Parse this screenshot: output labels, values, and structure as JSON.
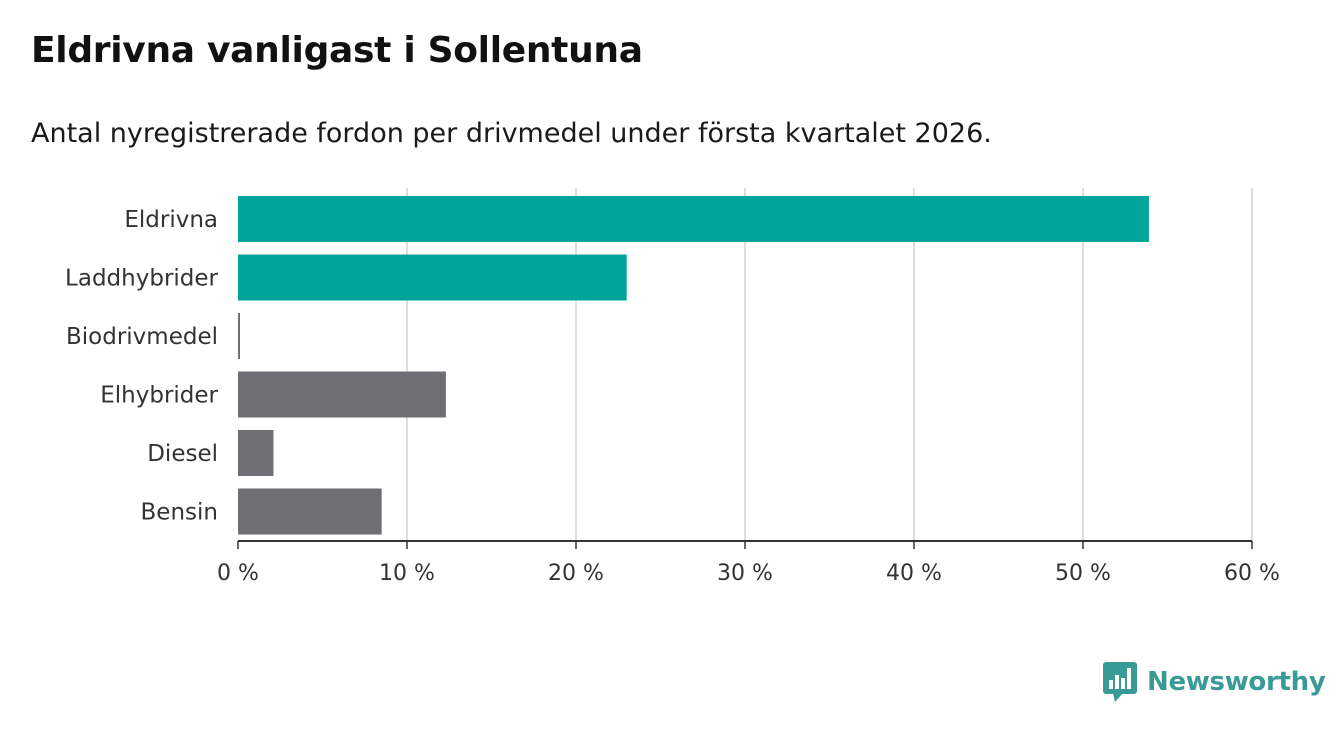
{
  "chart_data": {
    "type": "bar",
    "orientation": "horizontal",
    "title": "Eldrivna vanligast i Sollentuna",
    "subtitle": "Antal nyregistrerade fordon per drivmedel under första kvartalet 2026.",
    "categories": [
      "Eldrivna",
      "Laddhybrider",
      "Biodrivmedel",
      "Elhybrider",
      "Diesel",
      "Bensin"
    ],
    "values": [
      53.9,
      23.0,
      0.1,
      12.3,
      2.1,
      8.5
    ],
    "bar_colors": [
      "#00a499",
      "#00a499",
      "#6e6e73",
      "#6e6e73",
      "#6e6e73",
      "#6e6e73"
    ],
    "xlim": [
      0,
      60
    ],
    "xticks": [
      0,
      10,
      20,
      30,
      40,
      50,
      60
    ],
    "xtick_labels": [
      "0 %",
      "10 %",
      "20 %",
      "30 %",
      "40 %",
      "50 %",
      "60 %"
    ],
    "xlabel": "",
    "ylabel": "",
    "grid": true
  },
  "brand": {
    "name": "Newsworthy",
    "color": "#3a9a95",
    "icon": "bar-chart-speech-bubble-icon"
  }
}
